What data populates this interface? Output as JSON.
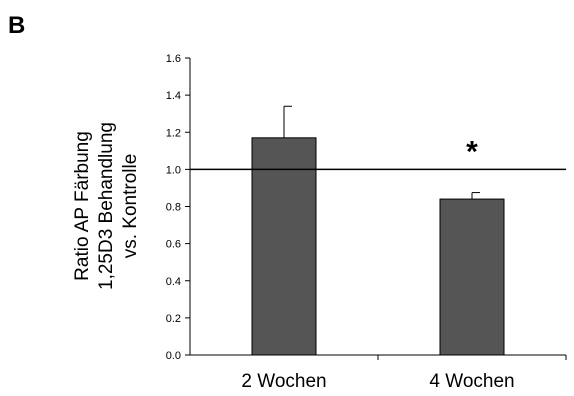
{
  "panel_label": "B",
  "chart_data": {
    "type": "bar",
    "categories": [
      "2 Wochen",
      "4 Wochen"
    ],
    "values": [
      1.17,
      0.84
    ],
    "error_bars": [
      0.17,
      0.035
    ],
    "ylim": [
      0,
      1.6
    ],
    "yticks": [
      "0.0",
      "0.2",
      "0.4",
      "0.6",
      "0.8",
      "1.0",
      "1.2",
      "1.4",
      "1.6"
    ],
    "ylabel": [
      "Ratio AP Färbung",
      "1,25D3 Behandlung",
      "vs. Kontrolle"
    ],
    "xlabel": "",
    "reference_line": 1.0,
    "annotations": [
      {
        "category": "4 Wochen",
        "text": "*"
      }
    ],
    "bar_color": "#555555",
    "grid": false,
    "legend": "none"
  }
}
